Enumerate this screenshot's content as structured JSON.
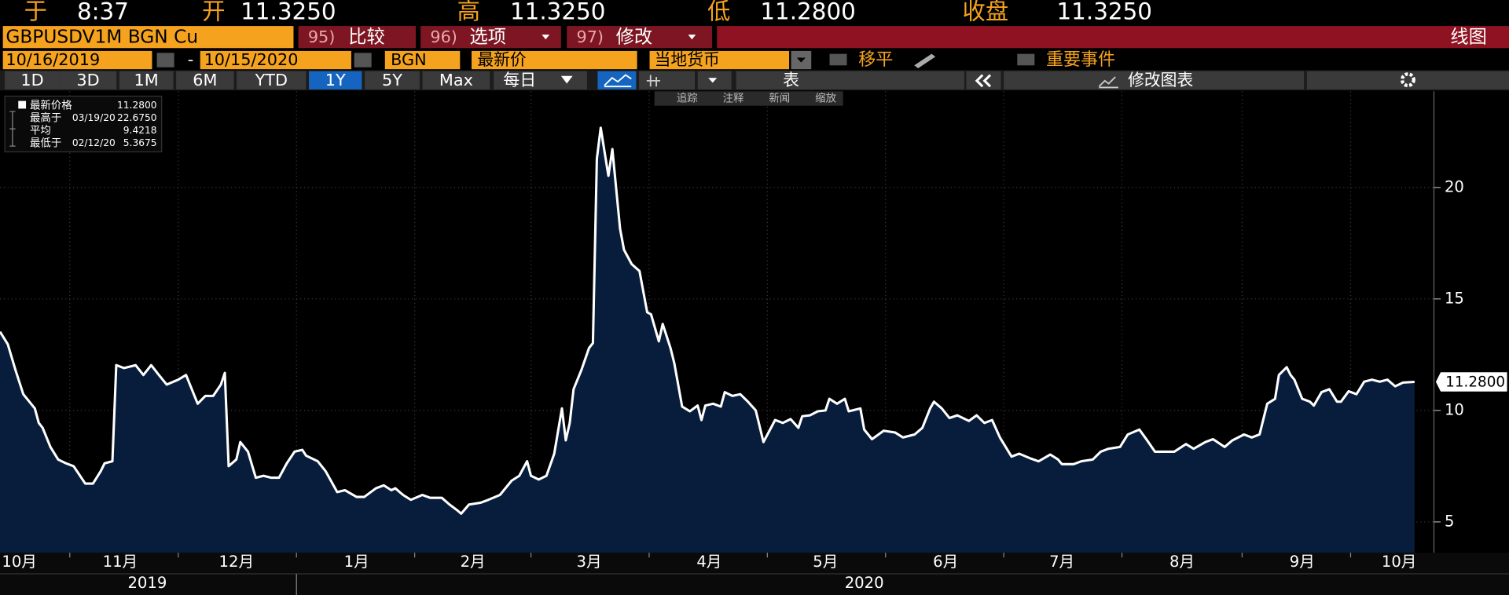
{
  "quote_bar": [
    {
      "label": "于",
      "value": "8:37"
    },
    {
      "label": "开",
      "value": "11.3250"
    },
    {
      "label": "高",
      "value": "11.3250"
    },
    {
      "label": "低",
      "value": "11.2800"
    },
    {
      "label": "收盘",
      "value": "11.3250"
    }
  ],
  "toolbar": {
    "security": "GBPUSDV1M BGN Cu",
    "buttons": [
      {
        "number": "95)",
        "label": "比较"
      },
      {
        "number": "96)",
        "label": "选项"
      },
      {
        "number": "97)",
        "label": "修改"
      }
    ],
    "chart_type": "线图"
  },
  "settings": {
    "start_date": "10/16/2019",
    "separator": "-",
    "end_date": "10/15/2020",
    "source": "BGN",
    "field": "最新价",
    "currency": "当地货币",
    "smoothing": "移平",
    "events": "重要事件"
  },
  "periods": [
    {
      "label": "1D"
    },
    {
      "label": "3D"
    },
    {
      "label": "1M"
    },
    {
      "label": "6M"
    },
    {
      "label": "YTD"
    },
    {
      "label": "1Y",
      "active": true
    },
    {
      "label": "5Y"
    },
    {
      "label": "Max"
    }
  ],
  "frequency": "每日",
  "table_button": "表",
  "edit_chart": "修改图表",
  "chart_tools": [
    "追踪",
    "注释",
    "新闻",
    "缩放"
  ],
  "chart_data": {
    "type": "area",
    "stats": [
      {
        "name": "最新价格",
        "value": "11.2800"
      },
      {
        "name": "最高于",
        "date": "03/19/20",
        "value": "22.6750"
      },
      {
        "name": "平均",
        "value": "9.4218"
      },
      {
        "name": "最低于",
        "date": "02/12/20",
        "value": "5.3675"
      }
    ],
    "series": [
      {
        "color": "#ffffff",
        "fill": "#071d3b",
        "x": [
          0,
          2,
          4,
          6,
          9,
          10,
          11,
          13,
          15,
          17,
          19,
          22,
          24,
          26,
          27,
          29,
          30,
          32,
          35,
          37,
          39,
          41,
          43,
          46,
          48,
          51,
          53,
          55,
          57,
          58,
          59,
          61,
          62,
          64,
          66,
          68,
          70,
          72,
          74,
          76,
          78,
          79,
          82,
          84,
          87,
          89,
          92,
          94,
          97,
          99,
          101,
          102,
          104,
          106,
          109,
          111,
          114,
          116,
          118,
          119,
          121,
          124,
          126,
          129,
          132,
          134,
          136,
          137,
          139,
          141,
          143,
          145,
          146,
          147,
          148,
          150,
          152,
          153,
          154,
          155,
          157,
          158,
          160,
          161,
          163,
          165,
          167,
          168,
          170,
          171,
          173,
          174,
          176,
          178,
          180,
          181,
          182,
          184,
          186,
          187,
          189,
          191,
          193,
          195,
          197,
          200,
          202,
          204,
          206,
          207,
          209,
          211,
          213,
          214,
          216,
          218,
          219,
          222,
          223,
          225,
          228,
          231,
          233,
          236,
          238,
          240,
          241,
          243,
          245,
          247,
          250,
          252,
          254,
          256,
          258,
          261,
          263,
          266,
          268,
          271,
          273,
          274,
          277,
          279,
          282,
          284,
          286,
          289,
          291,
          294,
          296,
          298,
          301,
          303,
          306,
          308,
          311,
          313,
          316,
          318,
          321,
          323,
          325,
          327,
          329,
          330,
          332,
          333,
          334,
          336,
          338,
          339,
          341,
          343,
          345,
          346,
          348,
          350,
          352,
          354,
          356,
          358,
          360,
          362,
          365
        ],
        "values": [
          13.53,
          12.97,
          11.81,
          10.73,
          10.09,
          9.44,
          9.22,
          8.36,
          7.8,
          7.63,
          7.5,
          6.72,
          6.72,
          7.28,
          7.63,
          7.72,
          12.03,
          11.9,
          12.03,
          11.59,
          12.03,
          11.59,
          11.16,
          11.38,
          11.59,
          10.3,
          10.65,
          10.65,
          11.16,
          11.68,
          7.5,
          7.8,
          8.58,
          8.15,
          6.98,
          7.07,
          6.98,
          6.98,
          7.63,
          8.15,
          8.23,
          7.97,
          7.72,
          7.28,
          6.34,
          6.42,
          6.12,
          6.12,
          6.51,
          6.64,
          6.42,
          6.51,
          6.21,
          5.99,
          6.21,
          6.08,
          6.08,
          5.78,
          5.52,
          5.37,
          5.78,
          5.86,
          5.99,
          6.21,
          6.85,
          7.07,
          7.72,
          7.07,
          6.9,
          7.07,
          8.06,
          10.09,
          8.66,
          9.44,
          10.95,
          11.81,
          12.8,
          13.02,
          21.29,
          22.675,
          20.52,
          21.72,
          18.15,
          17.2,
          16.56,
          16.25,
          14.4,
          14.31,
          13.1,
          13.88,
          12.8,
          12.11,
          10.17,
          9.96,
          10.22,
          9.57,
          10.22,
          10.3,
          10.17,
          10.82,
          10.65,
          10.73,
          10.39,
          10.0,
          8.58,
          9.57,
          9.44,
          9.61,
          9.22,
          9.74,
          9.78,
          9.96,
          10.0,
          10.52,
          10.3,
          10.52,
          9.96,
          10.09,
          9.14,
          8.71,
          9.09,
          9.01,
          8.79,
          8.92,
          9.22,
          10.09,
          10.39,
          10.09,
          9.66,
          9.78,
          9.53,
          9.78,
          9.44,
          9.57,
          8.79,
          7.93,
          8.06,
          7.84,
          7.72,
          8.02,
          7.8,
          7.59,
          7.59,
          7.72,
          7.8,
          8.15,
          8.28,
          8.36,
          8.92,
          9.14,
          8.66,
          8.15,
          8.15,
          8.15,
          8.49,
          8.28,
          8.58,
          8.71,
          8.36,
          8.66,
          8.92,
          8.79,
          8.92,
          10.3,
          10.52,
          11.59,
          11.94,
          11.59,
          11.38,
          10.52,
          10.39,
          10.22,
          10.82,
          10.95,
          10.39,
          10.39,
          10.86,
          10.73,
          11.29,
          11.38,
          11.29,
          11.38,
          11.08,
          11.25,
          11.28
        ]
      }
    ],
    "xlim": [
      0,
      370
    ],
    "ylim": [
      3.62,
      24.31
    ],
    "yticks": [
      5,
      10,
      15,
      20
    ],
    "grid": true,
    "xticks": [
      {
        "value": 5,
        "label": "10月"
      },
      {
        "value": 31,
        "label": "11月"
      },
      {
        "value": 61,
        "label": "12月"
      },
      {
        "value": 92,
        "label": "1月"
      },
      {
        "value": 122,
        "label": "2月"
      },
      {
        "value": 152,
        "label": "3月"
      },
      {
        "value": 183,
        "label": "4月"
      },
      {
        "value": 213,
        "label": "5月"
      },
      {
        "value": 244,
        "label": "6月"
      },
      {
        "value": 274,
        "label": "7月"
      },
      {
        "value": 305,
        "label": "8月"
      },
      {
        "value": 336,
        "label": "9月"
      },
      {
        "value": 361,
        "label": "10月"
      }
    ],
    "years": [
      {
        "value": 38,
        "label": "2019"
      },
      {
        "value": 223,
        "label": "2020"
      }
    ]
  }
}
